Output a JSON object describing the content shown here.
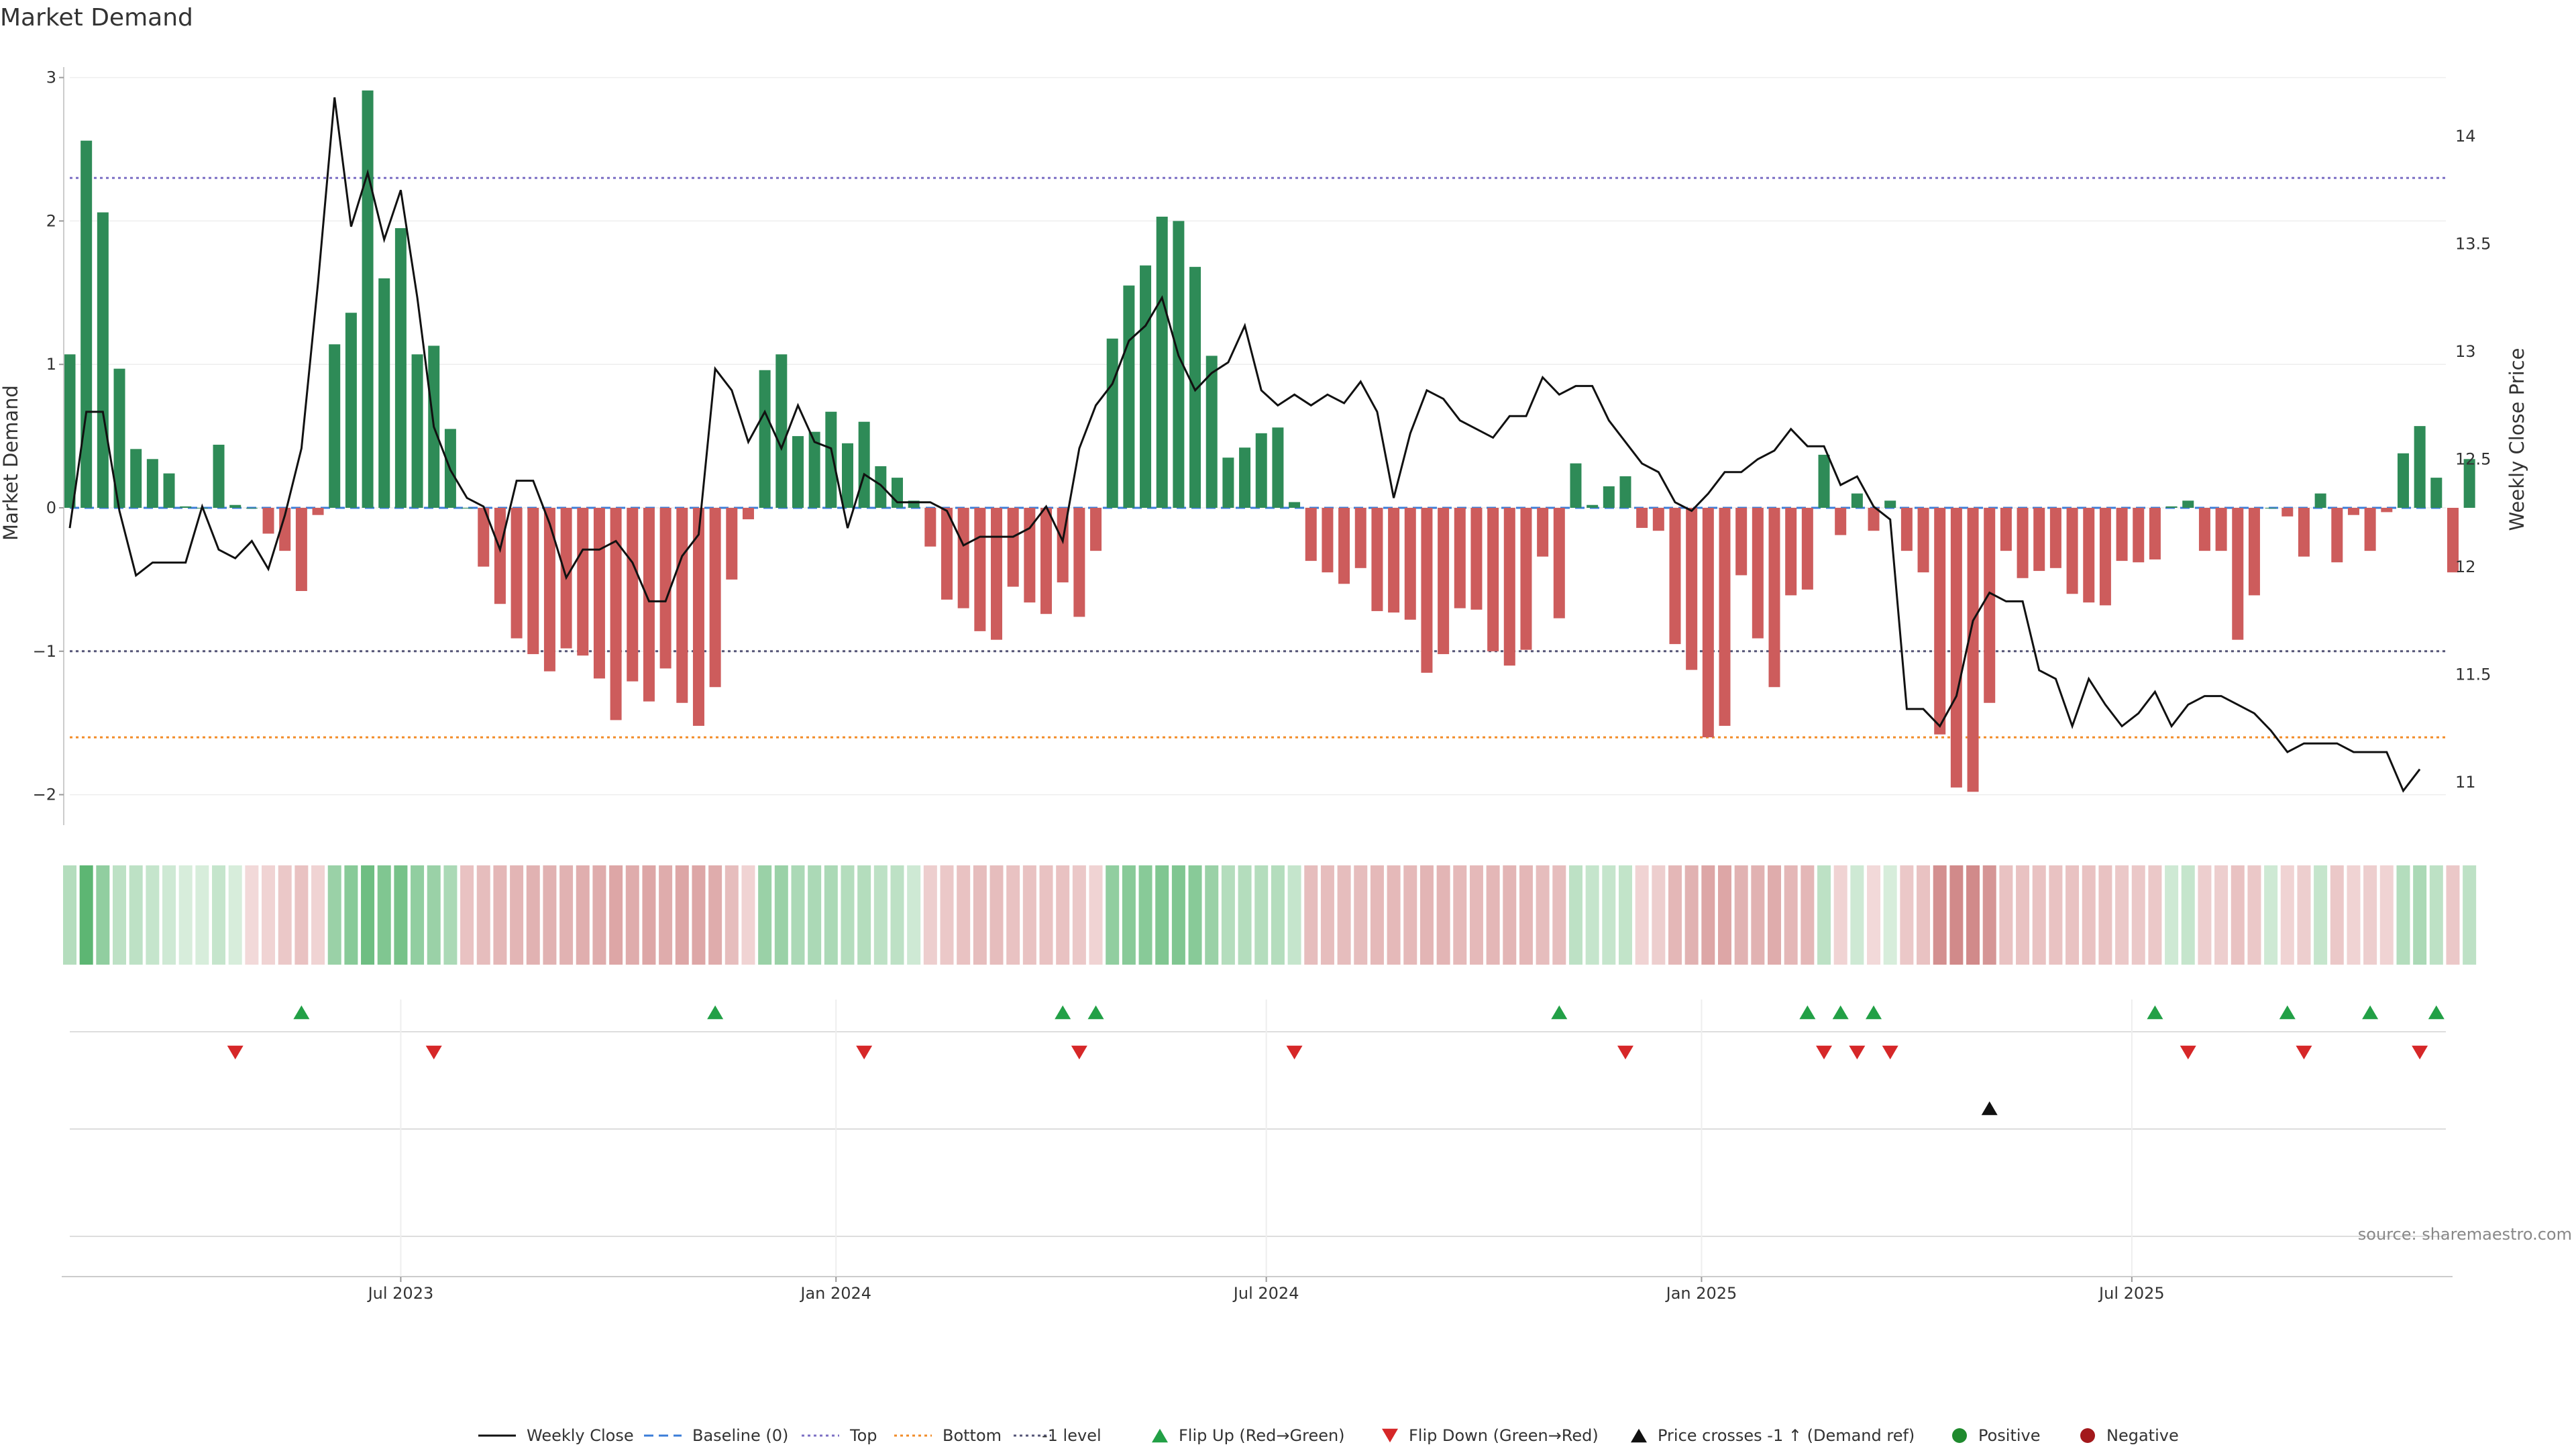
{
  "chart_data": {
    "type": "bar",
    "title": "Market Demand",
    "ylabel_left": "Market Demand",
    "ylabel_right": "Weekly Close Price",
    "ylim_left": [
      -2.2,
      3.0
    ],
    "ylim_right": [
      10.92,
      14.22
    ],
    "yticks_left": [
      -2,
      -1,
      0,
      1,
      2,
      3
    ],
    "yticks_left_labels": [
      "−2",
      "−1",
      "0",
      "1",
      "2",
      "3"
    ],
    "yticks_right": [
      11,
      11.5,
      12,
      12.5,
      13,
      13.5,
      14
    ],
    "yticks_right_labels": [
      "11",
      "11.5",
      "12",
      "12.5",
      "13",
      "13.5",
      "14"
    ],
    "x_ticks": [
      {
        "label": "Jul 2023",
        "index": 20
      },
      {
        "label": "Jan 2024",
        "index": 46.3
      },
      {
        "label": "Jul 2024",
        "index": 72.3
      },
      {
        "label": "Jan 2025",
        "index": 98.6
      },
      {
        "label": "Jul 2025",
        "index": 124.6
      }
    ],
    "reference_lines": [
      {
        "name": "Top",
        "value": 2.3,
        "color": "#7c6fc4",
        "style": "dotted"
      },
      {
        "name": "-1 level",
        "value": -1.0,
        "color": "#555577",
        "style": "dotted"
      },
      {
        "name": "Bottom",
        "value": -1.6,
        "color": "#f28c28",
        "style": "dotted"
      },
      {
        "name": "Baseline (0)",
        "value": 0,
        "color": "#3b7dd8",
        "style": "dashed"
      }
    ],
    "demand": [
      1.07,
      2.56,
      2.06,
      0.97,
      0.41,
      0.34,
      0.24,
      0.01,
      0.0,
      0.44,
      0.02,
      0.0,
      -0.18,
      -0.3,
      -0.58,
      -0.05,
      1.14,
      1.36,
      2.91,
      1.6,
      1.95,
      1.07,
      1.13,
      0.55,
      0.0,
      -0.41,
      -0.67,
      -0.91,
      -1.02,
      -1.14,
      -0.98,
      -1.03,
      -1.19,
      -1.48,
      -1.21,
      -1.35,
      -1.12,
      -1.36,
      -1.52,
      -1.25,
      -0.5,
      -0.08,
      0.96,
      1.07,
      0.5,
      0.53,
      0.67,
      0.45,
      0.6,
      0.29,
      0.21,
      0.05,
      -0.27,
      -0.64,
      -0.7,
      -0.86,
      -0.92,
      -0.55,
      -0.66,
      -0.74,
      -0.52,
      -0.76,
      -0.3,
      1.18,
      1.55,
      1.69,
      2.03,
      2.0,
      1.68,
      1.06,
      0.35,
      0.42,
      0.52,
      0.56,
      0.04,
      -0.37,
      -0.45,
      -0.53,
      -0.42,
      -0.72,
      -0.73,
      -0.78,
      -1.15,
      -1.02,
      -0.7,
      -0.71,
      -1.0,
      -1.1,
      -0.99,
      -0.34,
      -0.77,
      0.31,
      0.02,
      0.15,
      0.22,
      -0.14,
      -0.16,
      -0.95,
      -1.13,
      -1.6,
      -1.52,
      -0.47,
      -0.91,
      -1.25,
      -0.61,
      -0.57,
      0.37,
      -0.19,
      0.1,
      -0.16,
      0.05,
      -0.3,
      -0.45,
      -1.58,
      -1.95,
      -1.98,
      -1.36,
      -0.3,
      -0.49,
      -0.44,
      -0.42,
      -0.6,
      -0.66,
      -0.68,
      -0.37,
      -0.38,
      -0.36,
      0.01,
      0.05,
      -0.3,
      -0.3,
      -0.92,
      -0.61,
      0.0,
      -0.06,
      -0.34,
      0.1,
      -0.38,
      -0.05,
      -0.3,
      -0.03,
      0.38,
      0.57,
      0.21,
      -0.45,
      0.34
    ],
    "weekly_close": [
      12.18,
      12.72,
      12.72,
      12.26,
      11.96,
      12.02,
      12.02,
      12.02,
      12.28,
      12.08,
      12.04,
      12.12,
      11.99,
      12.24,
      12.55,
      13.32,
      14.18,
      13.58,
      13.83,
      13.52,
      13.75,
      13.25,
      12.65,
      12.45,
      12.32,
      12.28,
      12.08,
      12.4,
      12.4,
      12.2,
      11.95,
      12.08,
      12.08,
      12.12,
      12.02,
      11.84,
      11.84,
      12.05,
      12.15,
      12.92,
      12.82,
      12.58,
      12.72,
      12.55,
      12.75,
      12.58,
      12.55,
      12.18,
      12.43,
      12.38,
      12.3,
      12.3,
      12.3,
      12.26,
      12.1,
      12.14,
      12.14,
      12.14,
      12.18,
      12.28,
      12.12,
      12.55,
      12.75,
      12.85,
      13.05,
      13.12,
      13.25,
      12.98,
      12.82,
      12.9,
      12.95,
      13.12,
      12.82,
      12.75,
      12.8,
      12.75,
      12.8,
      12.76,
      12.86,
      12.72,
      12.32,
      12.62,
      12.82,
      12.78,
      12.68,
      12.64,
      12.6,
      12.7,
      12.7,
      12.88,
      12.8,
      12.84,
      12.84,
      12.68,
      12.58,
      12.48,
      12.44,
      12.3,
      12.26,
      12.34,
      12.44,
      12.44,
      12.5,
      12.54,
      12.64,
      12.56,
      12.56,
      12.38,
      12.42,
      12.28,
      12.22,
      11.34,
      11.34,
      11.26,
      11.4,
      11.75,
      11.88,
      11.84,
      11.84,
      11.52,
      11.48,
      11.26,
      11.48,
      11.36,
      11.26,
      11.32,
      11.42,
      11.26,
      11.36,
      11.4,
      11.4,
      11.36,
      11.32,
      11.24,
      11.14,
      11.18,
      11.18,
      11.18,
      11.14,
      11.14,
      11.14,
      10.96,
      11.06
    ],
    "heat_strip": [
      0.3,
      0.8,
      0.5,
      0.25,
      0.25,
      0.2,
      0.15,
      0.1,
      0.1,
      0.2,
      0.1,
      -0.1,
      -0.15,
      -0.25,
      -0.3,
      -0.15,
      0.45,
      0.55,
      0.7,
      0.6,
      0.65,
      0.5,
      0.45,
      0.35,
      -0.3,
      -0.35,
      -0.4,
      -0.42,
      -0.45,
      -0.45,
      -0.45,
      -0.48,
      -0.5,
      -0.55,
      -0.5,
      -0.55,
      -0.5,
      -0.55,
      -0.55,
      -0.5,
      -0.35,
      -0.15,
      0.45,
      0.45,
      0.35,
      0.35,
      0.35,
      0.3,
      0.3,
      0.25,
      0.25,
      0.15,
      -0.2,
      -0.25,
      -0.3,
      -0.35,
      -0.35,
      -0.3,
      -0.3,
      -0.3,
      -0.3,
      -0.25,
      -0.15,
      0.5,
      0.55,
      0.55,
      0.6,
      0.6,
      0.55,
      0.45,
      0.3,
      0.3,
      0.3,
      0.3,
      0.2,
      -0.35,
      -0.35,
      -0.35,
      -0.35,
      -0.38,
      -0.38,
      -0.38,
      -0.42,
      -0.42,
      -0.38,
      -0.38,
      -0.4,
      -0.42,
      -0.4,
      -0.35,
      -0.35,
      0.25,
      0.2,
      0.2,
      0.22,
      -0.15,
      -0.2,
      -0.4,
      -0.45,
      -0.55,
      -0.55,
      -0.45,
      -0.45,
      -0.5,
      -0.4,
      -0.4,
      0.25,
      -0.15,
      0.15,
      -0.1,
      0.1,
      -0.25,
      -0.3,
      -0.75,
      -0.8,
      -0.8,
      -0.7,
      -0.3,
      -0.3,
      -0.3,
      -0.3,
      -0.3,
      -0.3,
      -0.3,
      -0.25,
      -0.25,
      -0.25,
      0.15,
      0.2,
      -0.2,
      -0.2,
      -0.3,
      -0.25,
      0.15,
      -0.15,
      -0.2,
      0.2,
      -0.25,
      -0.15,
      -0.2,
      -0.15,
      0.3,
      0.35,
      0.25,
      -0.25,
      0.25
    ],
    "flip_up": [
      14,
      39,
      60,
      62,
      90,
      105,
      107,
      109,
      126,
      134,
      139,
      143
    ],
    "flip_down": [
      10,
      22,
      48,
      61,
      74,
      94,
      106,
      108,
      110,
      128,
      135,
      142
    ],
    "price_cross_demand_ref": [
      116
    ],
    "colors": {
      "positive": "#2e8b57",
      "negative": "#cd5c5c",
      "line": "#111111",
      "flip_up": "#22a046",
      "flip_down": "#d62728",
      "cross": "#111111",
      "positive_dot": "#1f8a2e",
      "negative_dot": "#a3191c"
    }
  },
  "legend": [
    {
      "key": "weekly_close",
      "label": "Weekly Close",
      "symbol": "line"
    },
    {
      "key": "baseline",
      "label": "Baseline (0)",
      "symbol": "dash"
    },
    {
      "key": "top",
      "label": "Top",
      "symbol": "dot-purple"
    },
    {
      "key": "bottom",
      "label": "Bottom",
      "symbol": "dot-orange"
    },
    {
      "key": "minus1",
      "label": "-1 level",
      "symbol": "dot-gray"
    },
    {
      "key": "flip_up",
      "label": "Flip Up (Red→Green)",
      "symbol": "tri-up-green"
    },
    {
      "key": "flip_down",
      "label": "Flip Down (Green→Red)",
      "symbol": "tri-down-red"
    },
    {
      "key": "cross",
      "label": "Price crosses -1 ↑ (Demand ref)",
      "symbol": "tri-up-black"
    },
    {
      "key": "positive",
      "label": "Positive",
      "symbol": "dot-green"
    },
    {
      "key": "negative",
      "label": "Negative",
      "symbol": "dot-red"
    }
  ],
  "source": "source: sharemaestro.com"
}
